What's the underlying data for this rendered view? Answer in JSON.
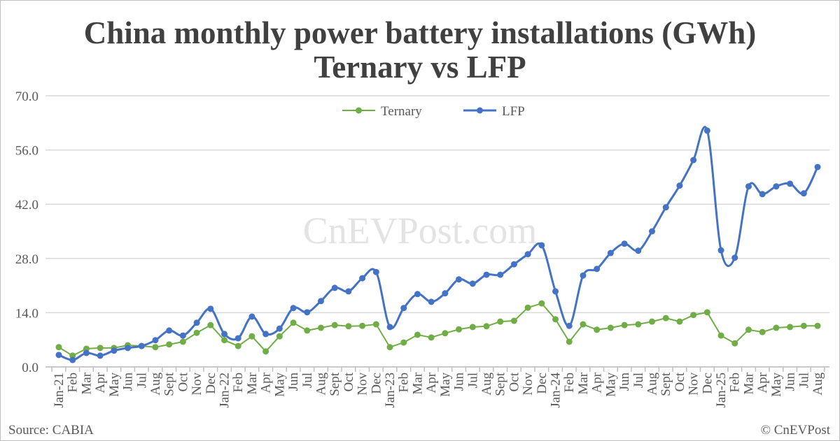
{
  "chart_data": {
    "type": "line",
    "title": "China monthly power battery installations (GWh)",
    "subtitle": "Ternary vs LFP",
    "xlabel": "",
    "ylabel": "",
    "ylim": [
      0,
      70
    ],
    "yticks": [
      "0.0",
      "14.0",
      "28.0",
      "42.0",
      "56.0",
      "70.0"
    ],
    "grid": true,
    "legend": "top-center",
    "categories": [
      "Jan-21",
      "Feb",
      "Mar",
      "Apr",
      "May",
      "Jun",
      "Jul",
      "Aug",
      "Sept",
      "Oct",
      "Nov",
      "Dec",
      "Jan-22",
      "Feb",
      "Mar",
      "Apr",
      "May",
      "Jun",
      "Jul",
      "Aug",
      "Sept",
      "Oct",
      "Nov",
      "Dec",
      "Jan-23",
      "Feb",
      "Mar",
      "Apr",
      "May",
      "Jun",
      "Jul",
      "Aug",
      "Sept",
      "Oct",
      "Nov",
      "Dec",
      "Jan-24",
      "Feb",
      "Mar",
      "Apr",
      "May",
      "Jun",
      "Jul",
      "Aug",
      "Sept",
      "Oct",
      "Nov",
      "Dec",
      "Jan-25",
      "Feb",
      "Mar",
      "Apr",
      "May",
      "Jun",
      "Jul",
      "Aug"
    ],
    "series": [
      {
        "name": "Ternary",
        "color": "#70ad47",
        "smooth": false,
        "values": [
          5.1,
          2.9,
          4.7,
          4.9,
          4.9,
          5.6,
          5.4,
          5.1,
          5.8,
          6.5,
          8.8,
          10.8,
          6.9,
          5.4,
          7.9,
          4.0,
          7.9,
          11.4,
          9.4,
          10.1,
          10.8,
          10.5,
          10.6,
          11.0,
          5.1,
          6.3,
          8.3,
          7.6,
          8.7,
          9.7,
          10.3,
          10.5,
          11.7,
          11.9,
          15.3,
          16.4,
          12.3,
          6.5,
          11.0,
          9.6,
          10.1,
          10.8,
          11.0,
          11.7,
          12.6,
          11.7,
          13.4,
          14.1,
          8.1,
          6.1,
          9.6,
          9.0,
          10.1,
          10.3,
          10.6,
          10.6
        ]
      },
      {
        "name": "LFP",
        "color": "#4472c4",
        "smooth": true,
        "values": [
          3.1,
          1.8,
          3.6,
          2.9,
          4.2,
          4.9,
          5.4,
          6.9,
          9.4,
          8.1,
          11.4,
          15.0,
          8.5,
          7.4,
          13.0,
          8.5,
          9.9,
          15.2,
          14.1,
          17.0,
          20.4,
          19.5,
          22.9,
          24.5,
          10.3,
          15.2,
          18.8,
          16.8,
          19.0,
          22.6,
          21.5,
          23.8,
          23.8,
          26.5,
          29.1,
          31.4,
          19.5,
          10.6,
          23.6,
          25.3,
          29.4,
          31.8,
          30.0,
          35.0,
          41.2,
          46.8,
          53.4,
          61.0,
          30.1,
          28.2,
          46.6,
          44.6,
          46.6,
          47.3,
          44.8,
          51.6
        ]
      }
    ]
  },
  "watermark": "CnEVPost.com",
  "footer": {
    "source": "Source: CABIA",
    "credit": "© CnEVPost"
  }
}
